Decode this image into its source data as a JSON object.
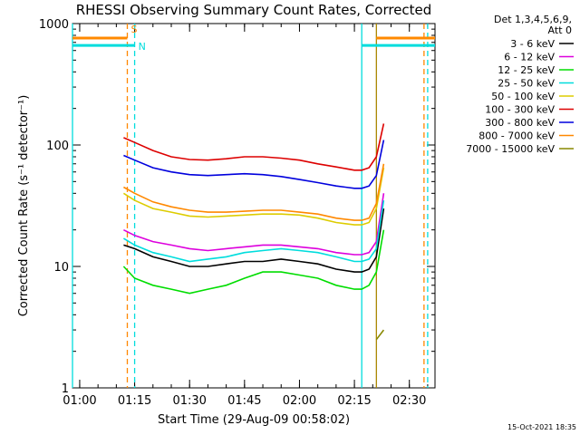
{
  "chart_data": {
    "type": "line",
    "title": "RHESSI Observing Summary Count Rates, Corrected",
    "xlabel": "Start Time (29-Aug-09 00:58:02)",
    "ylabel": "Corrected Count Rate (s⁻¹ detector⁻¹)",
    "y_scale": "log",
    "ylim": [
      1,
      1000
    ],
    "xlim": [
      "00:58:02",
      "02:37:00"
    ],
    "x_ticks": [
      "01:00",
      "01:15",
      "01:30",
      "01:45",
      "02:00",
      "02:15",
      "02:30"
    ],
    "y_ticks": [
      "1",
      "10",
      "100",
      "1000"
    ],
    "legend_header": [
      "Det 1,3,4,5,6,9,",
      "Att 0"
    ],
    "legend_position": "top-right outside",
    "timestamp": "15-Oct-2021 18:35",
    "x": [
      "01:12",
      "01:15",
      "01:20",
      "01:25",
      "01:30",
      "01:35",
      "01:40",
      "01:45",
      "01:50",
      "01:55",
      "02:00",
      "02:05",
      "02:10",
      "02:15",
      "02:17",
      "02:19",
      "02:21",
      "02:23"
    ],
    "series": [
      {
        "name": "3 - 6 keV",
        "color": "#000000",
        "values": [
          15,
          14,
          12,
          11,
          10,
          10,
          10.5,
          11,
          11,
          11.5,
          11,
          10.5,
          9.5,
          9,
          9,
          9.5,
          12,
          30
        ]
      },
      {
        "name": "6 - 12 keV",
        "color": "#dd00dd",
        "values": [
          20,
          18,
          16,
          15,
          14,
          13.5,
          14,
          14.5,
          15,
          15,
          14.5,
          14,
          13,
          12.5,
          12.5,
          13,
          16,
          40
        ]
      },
      {
        "name": "12 - 25 keV",
        "color": "#00dd00",
        "values": [
          10,
          8,
          7,
          6.5,
          6,
          6.5,
          7,
          8,
          9,
          9,
          8.5,
          8,
          7,
          6.5,
          6.5,
          7,
          9,
          20
        ]
      },
      {
        "name": "25 - 50 keV",
        "color": "#00dddd",
        "values": [
          17,
          15,
          13,
          12,
          11,
          11.5,
          12,
          13,
          13.5,
          14,
          13.5,
          13,
          12,
          11,
          11,
          11.5,
          14,
          35
        ]
      },
      {
        "name": "50 - 100 keV",
        "color": "#ddcc00",
        "values": [
          40,
          35,
          30,
          28,
          26,
          25.5,
          26,
          26.5,
          27,
          27,
          26.5,
          25,
          23,
          22,
          22,
          23,
          30,
          65
        ]
      },
      {
        "name": "100 - 300 keV",
        "color": "#dd0000",
        "values": [
          115,
          105,
          90,
          80,
          76,
          75,
          77,
          80,
          80,
          78,
          75,
          70,
          66,
          62,
          62,
          65,
          80,
          150
        ]
      },
      {
        "name": "300 - 800 keV",
        "color": "#0000dd",
        "values": [
          82,
          75,
          65,
          60,
          57,
          56,
          57,
          58,
          57,
          55,
          52,
          49,
          46,
          44,
          44,
          46,
          56,
          110
        ]
      },
      {
        "name": "800 - 7000 keV",
        "color": "#ff8800",
        "values": [
          45,
          40,
          34,
          31,
          29,
          28,
          28,
          28.5,
          29,
          29,
          28,
          27,
          25,
          24,
          24,
          25,
          33,
          70
        ]
      },
      {
        "name": "7000 - 15000 keV",
        "color": "#888800",
        "values": [
          null,
          null,
          null,
          null,
          null,
          null,
          null,
          null,
          null,
          null,
          null,
          null,
          null,
          null,
          null,
          null,
          2.5,
          3
        ]
      }
    ],
    "annotations": [
      {
        "text": "S",
        "color": "#ff8800",
        "at": "01:13",
        "meaning": "SAA interval marker"
      },
      {
        "text": "N",
        "color": "#00dddd",
        "at": "01:15",
        "meaning": "Night interval marker"
      }
    ],
    "vertical_lines": [
      {
        "at": "00:58:02",
        "color": "#00dddd",
        "style": "solid"
      },
      {
        "at": "01:13",
        "color": "#ff8800",
        "style": "dashed"
      },
      {
        "at": "01:15",
        "color": "#00dddd",
        "style": "dashed"
      },
      {
        "at": "02:17",
        "color": "#00dddd",
        "style": "solid"
      },
      {
        "at": "02:21",
        "color": "#aa8800",
        "style": "solid"
      },
      {
        "at": "02:34",
        "color": "#ff8800",
        "style": "dashed"
      },
      {
        "at": "02:35",
        "color": "#00dddd",
        "style": "dashed"
      }
    ]
  }
}
